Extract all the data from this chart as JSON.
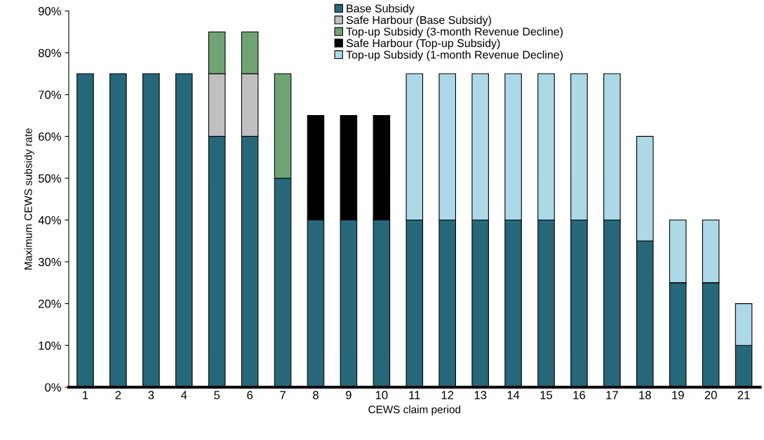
{
  "chart_data": {
    "type": "bar",
    "stacked": true,
    "xlabel": "CEWS claim period",
    "ylabel": "Maximum CEWS subsidy rate",
    "categories": [
      "1",
      "2",
      "3",
      "4",
      "5",
      "6",
      "7",
      "8",
      "9",
      "10",
      "11",
      "12",
      "13",
      "14",
      "15",
      "16",
      "17",
      "18",
      "19",
      "20",
      "21"
    ],
    "series": [
      {
        "name": "Base Subsidy",
        "color": "#27677a",
        "values": [
          75,
          75,
          75,
          75,
          60,
          60,
          50,
          40,
          40,
          40,
          40,
          40,
          40,
          40,
          40,
          40,
          40,
          35,
          25,
          25,
          10
        ]
      },
      {
        "name": "Safe Harbour (Base Subsidy)",
        "color": "#c0c0c0",
        "values": [
          null,
          null,
          null,
          null,
          15,
          15,
          null,
          null,
          null,
          null,
          null,
          null,
          null,
          null,
          null,
          null,
          null,
          null,
          null,
          null,
          null
        ]
      },
      {
        "name": "Top-up Subsidy (3-month Revenue Decline)",
        "color": "#6fa374",
        "values": [
          null,
          null,
          null,
          null,
          10,
          10,
          25,
          null,
          null,
          null,
          null,
          null,
          null,
          null,
          null,
          null,
          null,
          null,
          null,
          null,
          null
        ]
      },
      {
        "name": "Safe Harbour (Top-up Subsidy)",
        "color": "#000000",
        "values": [
          null,
          null,
          null,
          null,
          null,
          null,
          null,
          25,
          25,
          25,
          null,
          null,
          null,
          null,
          null,
          null,
          null,
          null,
          null,
          null,
          null
        ]
      },
      {
        "name": "Top-up Subsidy (1-month Revenue Decline)",
        "color": "#add8e6",
        "values": [
          null,
          null,
          null,
          null,
          null,
          null,
          null,
          null,
          null,
          null,
          35,
          35,
          35,
          35,
          35,
          35,
          35,
          25,
          15,
          15,
          10
        ]
      }
    ],
    "ylim": [
      0,
      90
    ],
    "yticks": [
      {
        "value": 0,
        "label": "0%"
      },
      {
        "value": 10,
        "label": "10%"
      },
      {
        "value": 20,
        "label": "20%"
      },
      {
        "value": 30,
        "label": "30%"
      },
      {
        "value": 40,
        "label": "40%"
      },
      {
        "value": 50,
        "label": "50%"
      },
      {
        "value": 60,
        "label": "60%"
      },
      {
        "value": 70,
        "label": "70%"
      },
      {
        "value": 80,
        "label": "80%"
      },
      {
        "value": 90,
        "label": "90%"
      }
    ],
    "grid": false,
    "legend": "top"
  }
}
